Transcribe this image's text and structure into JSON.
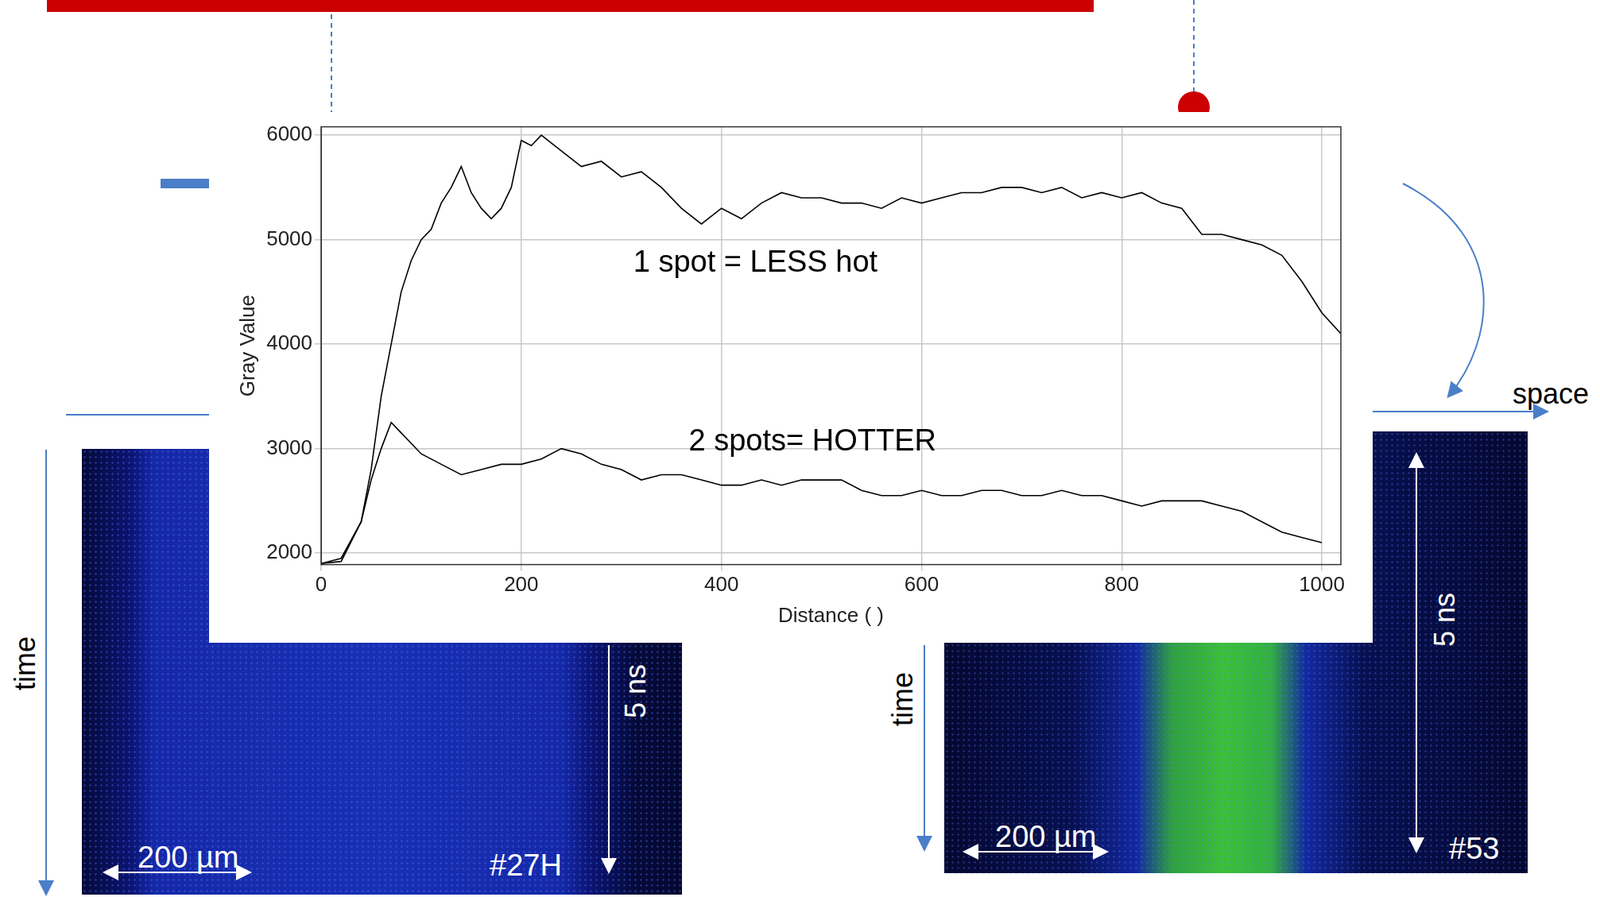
{
  "chart_data": {
    "type": "line",
    "x_label": "Distance ( )",
    "y_label": "Gray Value",
    "xlim": [
      0,
      1019
    ],
    "ylim": [
      1890,
      6080
    ],
    "xticks": [
      0,
      200,
      400,
      600,
      800,
      1000
    ],
    "yticks": [
      2000,
      3000,
      4000,
      5000,
      6000
    ],
    "grid": true,
    "series": [
      {
        "color": "#000000",
        "x": [
          0,
          20,
          40,
          50,
          60,
          70,
          80,
          90,
          100,
          110,
          120,
          130,
          140,
          150,
          160,
          170,
          180,
          190,
          200,
          210,
          220,
          240,
          260,
          280,
          300,
          320,
          340,
          360,
          380,
          400,
          420,
          440,
          460,
          480,
          500,
          520,
          540,
          560,
          580,
          600,
          620,
          640,
          660,
          680,
          700,
          720,
          740,
          760,
          780,
          800,
          820,
          840,
          860,
          880,
          900,
          920,
          940,
          960,
          980,
          1000,
          1019
        ],
        "values": [
          1900,
          1920,
          2300,
          2800,
          3500,
          4000,
          4500,
          4800,
          5000,
          5100,
          5350,
          5500,
          5700,
          5450,
          5300,
          5200,
          5300,
          5500,
          5950,
          5900,
          6000,
          5850,
          5700,
          5750,
          5600,
          5650,
          5500,
          5300,
          5150,
          5300,
          5200,
          5350,
          5450,
          5400,
          5400,
          5350,
          5350,
          5300,
          5400,
          5350,
          5400,
          5450,
          5450,
          5500,
          5500,
          5450,
          5500,
          5400,
          5450,
          5400,
          5450,
          5350,
          5300,
          5050,
          5050,
          5000,
          4950,
          4850,
          4600,
          4300,
          4100
        ]
      },
      {
        "color": "#000000",
        "x": [
          0,
          20,
          40,
          50,
          60,
          70,
          80,
          100,
          120,
          140,
          160,
          180,
          200,
          220,
          240,
          260,
          280,
          300,
          320,
          340,
          360,
          380,
          400,
          420,
          440,
          460,
          480,
          500,
          520,
          540,
          560,
          580,
          600,
          620,
          640,
          660,
          680,
          700,
          720,
          740,
          760,
          780,
          800,
          820,
          840,
          860,
          880,
          900,
          920,
          940,
          960,
          980,
          1000
        ],
        "values": [
          1900,
          1950,
          2300,
          2700,
          3000,
          3250,
          3150,
          2950,
          2850,
          2750,
          2800,
          2850,
          2850,
          2900,
          3000,
          2950,
          2850,
          2800,
          2700,
          2750,
          2750,
          2700,
          2650,
          2650,
          2700,
          2650,
          2700,
          2700,
          2700,
          2600,
          2550,
          2550,
          2600,
          2550,
          2550,
          2600,
          2600,
          2550,
          2550,
          2600,
          2550,
          2550,
          2500,
          2450,
          2500,
          2500,
          2500,
          2450,
          2400,
          2300,
          2200,
          2150,
          2100
        ]
      }
    ],
    "annotations": [
      {
        "text": "1 spot = LESS hot",
        "x": 434,
        "y": 4770
      },
      {
        "text": "2 spots= HOTTER",
        "x": 491,
        "y": 3060
      }
    ]
  },
  "slide": {
    "space_label": "space",
    "images": [
      {
        "id": "#27H",
        "time_label": "time",
        "scale_bar": "200 µm",
        "duration": "5 ns"
      },
      {
        "id": "#53",
        "time_label": "time",
        "scale_bar": "200 µm",
        "duration": "5 ns"
      }
    ]
  }
}
